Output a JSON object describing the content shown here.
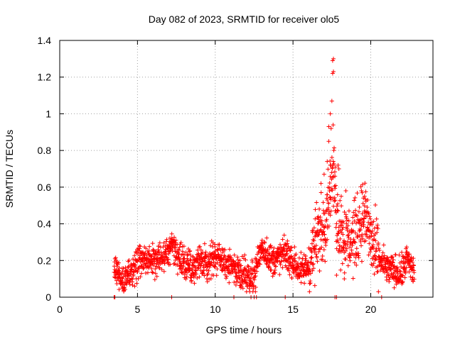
{
  "chart_data": {
    "type": "scatter",
    "title": "Day 082 of 2023, SRMTID for receiver olo5",
    "xlabel": "GPS time / hours",
    "ylabel": "SRMTID / TECUs",
    "xlim": [
      0,
      24
    ],
    "ylim": [
      0,
      1.4
    ],
    "grid": true,
    "marker": "+",
    "marker_color": "#ff0000",
    "x_ticks": [
      0,
      5,
      10,
      15,
      20
    ],
    "x_tick_labels": [
      "0",
      "5",
      "10",
      "15",
      "20"
    ],
    "y_ticks": [
      0,
      0.2,
      0.4,
      0.6,
      0.8,
      1.0,
      1.2,
      1.4
    ],
    "y_tick_labels": [
      "0",
      "0.2",
      "0.4",
      "0.6",
      "0.8",
      "1",
      "1.2",
      "1.4"
    ],
    "series": [
      {
        "name": "SRMTID",
        "trend_x": [
          3.5,
          3.8,
          4.0,
          4.3,
          4.7,
          5.0,
          5.5,
          6.0,
          6.5,
          7.0,
          7.3,
          7.6,
          8.0,
          8.5,
          9.0,
          9.5,
          10.0,
          10.5,
          11.0,
          11.5,
          12.0,
          12.3,
          12.6,
          12.8,
          13.0,
          13.3,
          13.6,
          14.0,
          14.5,
          15.0,
          15.5,
          16.0,
          16.3,
          16.6,
          17.0,
          17.3,
          17.6,
          17.8,
          18.0,
          18.3,
          18.6,
          19.0,
          19.3,
          19.6,
          20.0,
          20.3,
          20.6,
          21.0,
          21.5,
          22.0,
          22.3,
          22.5,
          22.8
        ],
        "trend_y": [
          0.18,
          0.13,
          0.09,
          0.11,
          0.14,
          0.18,
          0.21,
          0.2,
          0.22,
          0.25,
          0.29,
          0.23,
          0.18,
          0.17,
          0.19,
          0.18,
          0.22,
          0.2,
          0.16,
          0.15,
          0.12,
          0.1,
          0.14,
          0.22,
          0.27,
          0.24,
          0.2,
          0.21,
          0.24,
          0.19,
          0.14,
          0.17,
          0.25,
          0.33,
          0.4,
          0.55,
          0.7,
          0.45,
          0.38,
          0.33,
          0.3,
          0.33,
          0.4,
          0.45,
          0.32,
          0.24,
          0.2,
          0.16,
          0.14,
          0.13,
          0.21,
          0.18,
          0.13
        ],
        "spread": 0.06,
        "peak_points": [
          {
            "x": 16.8,
            "y": 0.62
          },
          {
            "x": 17.0,
            "y": 0.67
          },
          {
            "x": 17.2,
            "y": 0.74
          },
          {
            "x": 17.3,
            "y": 0.85
          },
          {
            "x": 17.3,
            "y": 0.93
          },
          {
            "x": 17.4,
            "y": 1.0
          },
          {
            "x": 17.45,
            "y": 0.92
          },
          {
            "x": 17.5,
            "y": 1.07
          },
          {
            "x": 17.55,
            "y": 1.22
          },
          {
            "x": 17.6,
            "y": 1.23
          },
          {
            "x": 17.55,
            "y": 1.29
          },
          {
            "x": 17.6,
            "y": 1.3
          },
          {
            "x": 17.4,
            "y": 0.72
          },
          {
            "x": 17.7,
            "y": 0.66
          },
          {
            "x": 17.9,
            "y": 0.72
          },
          {
            "x": 17.95,
            "y": 0.7
          },
          {
            "x": 18.1,
            "y": 0.55
          },
          {
            "x": 19.4,
            "y": 0.58
          },
          {
            "x": 19.6,
            "y": 0.55
          },
          {
            "x": 19.8,
            "y": 0.53
          },
          {
            "x": 18.4,
            "y": 0.58
          },
          {
            "x": 17.2,
            "y": 0.53
          },
          {
            "x": 18.3,
            "y": 0.1
          },
          {
            "x": 17.8,
            "y": 0.12
          }
        ],
        "baseline_markers": [
          3.5,
          3.55,
          7.2,
          11.2,
          12.3,
          12.5,
          12.65,
          14.5,
          17.7,
          17.8,
          20.7
        ]
      }
    ]
  }
}
